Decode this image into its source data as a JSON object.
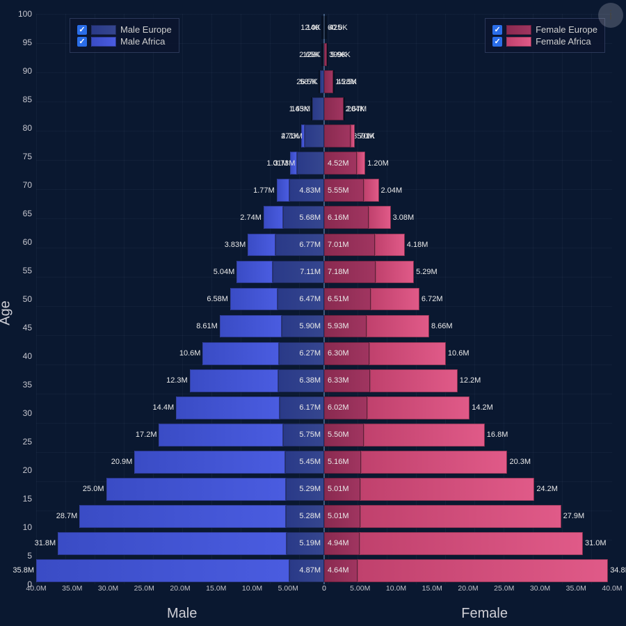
{
  "chart": {
    "type": "population-pyramid",
    "background_color": "#0a1830",
    "grid_color": "rgba(100,120,160,0.08)",
    "center_line_color": "#7aa0d0",
    "y": {
      "label": "Age",
      "ticks": [
        0,
        5,
        10,
        15,
        20,
        25,
        30,
        35,
        40,
        45,
        50,
        55,
        60,
        65,
        70,
        75,
        80,
        85,
        90,
        95,
        100
      ]
    },
    "x": {
      "left": {
        "label": "Male",
        "max": 40000000,
        "ticks": [
          "40.0M",
          "35.0M",
          "30.0M",
          "25.0M",
          "20.0M",
          "15.0M",
          "10.0M",
          "5.00M",
          "0"
        ]
      },
      "right": {
        "label": "Female",
        "max": 40000000,
        "ticks": [
          "0",
          "5.00M",
          "10.0M",
          "15.0M",
          "20.0M",
          "25.0M",
          "30.0M",
          "35.0M",
          "40.0M"
        ]
      }
    },
    "series": {
      "male_europe": {
        "label": "Male Europe",
        "color_from": "#2a3a88",
        "color_to": "#35468f",
        "checked": true
      },
      "male_africa": {
        "label": "Male Africa",
        "color_from": "#3a4cc5",
        "color_to": "#4a5ce0",
        "checked": true
      },
      "female_europe": {
        "label": "Female Europe",
        "color_from": "#8a2a50",
        "color_to": "#a03560",
        "checked": true
      },
      "female_africa": {
        "label": "Female Africa",
        "color_from": "#c0416d",
        "color_to": "#e05a88",
        "checked": true
      }
    },
    "rows": [
      {
        "age": 0,
        "ma": 35800000,
        "me": 4870000,
        "fe": 4640000,
        "fa": 34800000,
        "ma_l": "35.8M",
        "me_l": "4.87M",
        "fe_l": "4.64M",
        "fa_l": "34.8M"
      },
      {
        "age": 5,
        "ma": 31800000,
        "me": 5190000,
        "fe": 4940000,
        "fa": 31000000,
        "ma_l": "31.8M",
        "me_l": "5.19M",
        "fe_l": "4.94M",
        "fa_l": "31.0M"
      },
      {
        "age": 10,
        "ma": 28700000,
        "me": 5280000,
        "fe": 5010000,
        "fa": 27900000,
        "ma_l": "28.7M",
        "me_l": "5.28M",
        "fe_l": "5.01M",
        "fa_l": "27.9M"
      },
      {
        "age": 15,
        "ma": 25000000,
        "me": 5290000,
        "fe": 5010000,
        "fa": 24200000,
        "ma_l": "25.0M",
        "me_l": "5.29M",
        "fe_l": "5.01M",
        "fa_l": "24.2M"
      },
      {
        "age": 20,
        "ma": 20900000,
        "me": 5450000,
        "fe": 5160000,
        "fa": 20300000,
        "ma_l": "20.9M",
        "me_l": "5.45M",
        "fe_l": "5.16M",
        "fa_l": "20.3M"
      },
      {
        "age": 25,
        "ma": 17200000,
        "me": 5750000,
        "fe": 5500000,
        "fa": 16800000,
        "ma_l": "17.2M",
        "me_l": "5.75M",
        "fe_l": "5.50M",
        "fa_l": "16.8M"
      },
      {
        "age": 30,
        "ma": 14400000,
        "me": 6170000,
        "fe": 6020000,
        "fa": 14200000,
        "ma_l": "14.4M",
        "me_l": "6.17M",
        "fe_l": "6.02M",
        "fa_l": "14.2M"
      },
      {
        "age": 35,
        "ma": 12300000,
        "me": 6380000,
        "fe": 6330000,
        "fa": 12200000,
        "ma_l": "12.3M",
        "me_l": "6.38M",
        "fe_l": "6.33M",
        "fa_l": "12.2M"
      },
      {
        "age": 40,
        "ma": 10600000,
        "me": 6270000,
        "fe": 6300000,
        "fa": 10600000,
        "ma_l": "10.6M",
        "me_l": "6.27M",
        "fe_l": "6.30M",
        "fa_l": "10.6M"
      },
      {
        "age": 45,
        "ma": 8610000,
        "me": 5900000,
        "fe": 5930000,
        "fa": 8660000,
        "ma_l": "8.61M",
        "me_l": "5.90M",
        "fe_l": "5.93M",
        "fa_l": "8.66M"
      },
      {
        "age": 50,
        "ma": 6580000,
        "me": 6470000,
        "fe": 6510000,
        "fa": 6720000,
        "ma_l": "6.58M",
        "me_l": "6.47M",
        "fe_l": "6.51M",
        "fa_l": "6.72M"
      },
      {
        "age": 55,
        "ma": 5040000,
        "me": 7110000,
        "fe": 7180000,
        "fa": 5290000,
        "ma_l": "5.04M",
        "me_l": "7.11M",
        "fe_l": "7.18M",
        "fa_l": "5.29M"
      },
      {
        "age": 60,
        "ma": 3830000,
        "me": 6770000,
        "fe": 7010000,
        "fa": 4180000,
        "ma_l": "3.83M",
        "me_l": "6.77M",
        "fe_l": "7.01M",
        "fa_l": "4.18M"
      },
      {
        "age": 65,
        "ma": 2740000,
        "me": 5680000,
        "fe": 6160000,
        "fa": 3080000,
        "ma_l": "2.74M",
        "me_l": "5.68M",
        "fe_l": "6.16M",
        "fa_l": "3.08M"
      },
      {
        "age": 70,
        "ma": 1770000,
        "me": 4830000,
        "fe": 5550000,
        "fa": 2040000,
        "ma_l": "1.77M",
        "me_l": "4.83M",
        "fe_l": "5.55M",
        "fa_l": "2.04M"
      },
      {
        "age": 75,
        "ma": 1010000,
        "me": 3730000,
        "fe": 4520000,
        "fa": 1200000,
        "ma_l": "1.01M",
        "me_l": "3.73M",
        "fe_l": "4.52M",
        "fa_l": "1.20M"
      },
      {
        "age": 80,
        "ma": 471000,
        "me": 2730000,
        "fe": 3700000,
        "fa": 591000,
        "ma_l": "471K",
        "me_l": "2.73M",
        "fe_l": "3.70M",
        "fa_l": "591K"
      },
      {
        "age": 85,
        "ma": 145000,
        "me": 1630000,
        "fe": 2670000,
        "fa": 204000,
        "ma_l": "145K",
        "me_l": "1.63M",
        "fe_l": "2.67M",
        "fa_l": "204K"
      },
      {
        "age": 90,
        "ma": 26500,
        "me": 587000,
        "fe": 1280000,
        "fa": 45500,
        "ma_l": "26.5K",
        "me_l": "587K",
        "fe_l": "1.28M",
        "fa_l": "45.5K"
      },
      {
        "age": 95,
        "ma": 2650,
        "me": 128000,
        "fe": 399000,
        "fa": 5960,
        "ma_l": "2.65K",
        "me_l": "128K",
        "fe_l": "399K",
        "fa_l": "5.96K"
      },
      {
        "age": 100,
        "ma": 140,
        "me": 12000,
        "fe": 60000,
        "fa": 425,
        "ma_l": "140",
        "me_l": "12.0K",
        "fe_l": "60.0K",
        "fa_l": "425"
      }
    ]
  },
  "info_icon": "i"
}
